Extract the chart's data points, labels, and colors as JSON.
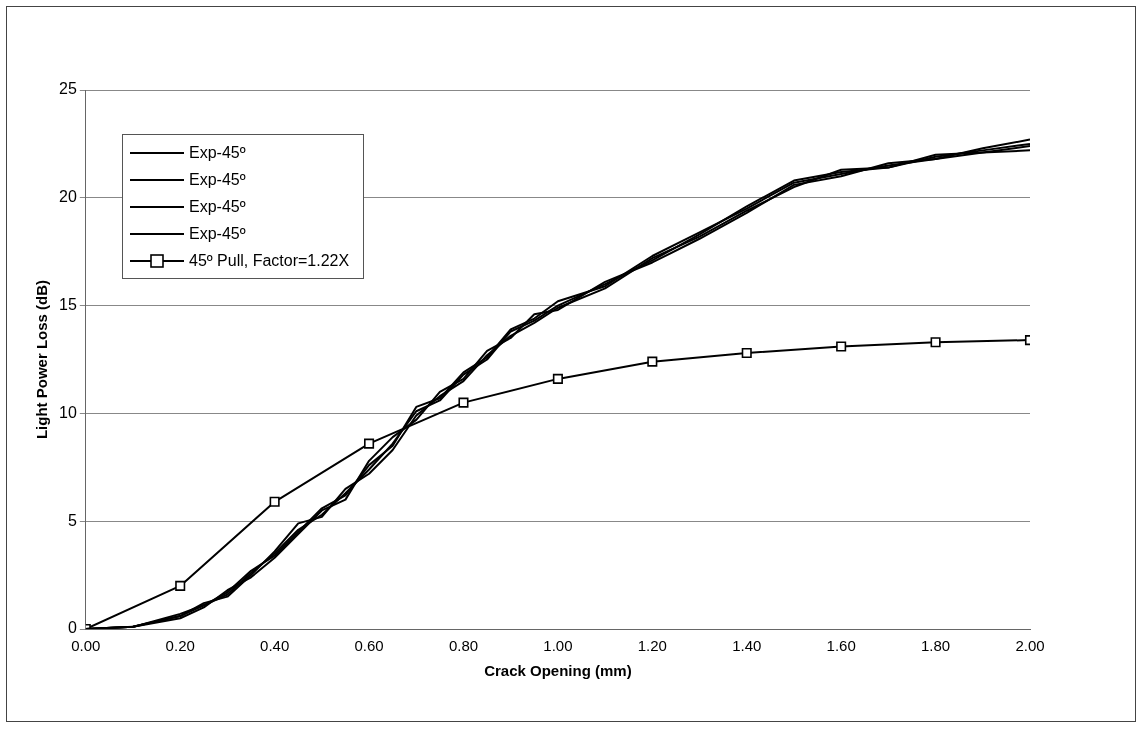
{
  "chart_data": {
    "type": "line",
    "xlabel": "Crack Opening (mm)",
    "ylabel": "Light Power Loss (dB)",
    "xlim": [
      0,
      2
    ],
    "xticks": [
      {
        "value": 0,
        "label": "0.00"
      },
      {
        "value": 0.2,
        "label": "0.20"
      },
      {
        "value": 0.4,
        "label": "0.40"
      },
      {
        "value": 0.6,
        "label": "0.60"
      },
      {
        "value": 0.8,
        "label": "0.80"
      },
      {
        "value": 1,
        "label": "1.00"
      },
      {
        "value": 1.2,
        "label": "1.20"
      },
      {
        "value": 1.4,
        "label": "1.40"
      },
      {
        "value": 1.6,
        "label": "1.60"
      },
      {
        "value": 1.8,
        "label": "1.80"
      },
      {
        "value": 2,
        "label": "2.00"
      }
    ],
    "ylim": [
      0,
      25
    ],
    "yticks": [
      0,
      5,
      10,
      15,
      20,
      25
    ],
    "grid": "y",
    "legend": "top left",
    "line_style": "solid",
    "x": [
      0,
      0.1,
      0.2,
      0.25,
      0.3,
      0.35,
      0.4,
      0.45,
      0.5,
      0.55,
      0.6,
      0.65,
      0.7,
      0.75,
      0.8,
      0.85,
      0.9,
      0.95,
      1,
      1.1,
      1.2,
      1.3,
      1.4,
      1.5,
      1.6,
      1.7,
      1.8,
      1.9,
      2
    ],
    "series": [
      {
        "name": "Exp-45º",
        "color": "#000000",
        "marker": "none",
        "values": [
          0,
          0.1,
          0.6,
          1.1,
          1.6,
          2.6,
          3.5,
          4.6,
          5.3,
          6.3,
          7.4,
          8.6,
          10.1,
          10.6,
          11.8,
          12.5,
          13.8,
          14.3,
          15.0,
          16.0,
          17.1,
          18.3,
          19.6,
          20.8,
          21.2,
          21.4,
          21.9,
          22.2,
          22.5
        ]
      },
      {
        "name": "Exp-45º",
        "color": "#000000",
        "marker": "none",
        "values": [
          0,
          0.1,
          0.5,
          1.0,
          1.8,
          2.4,
          3.3,
          4.4,
          5.5,
          6.0,
          7.8,
          8.9,
          9.7,
          11.0,
          11.6,
          12.9,
          13.5,
          14.6,
          14.8,
          16.1,
          17.0,
          18.1,
          19.3,
          20.6,
          21.0,
          21.6,
          21.8,
          22.3,
          22.7
        ]
      },
      {
        "name": "Exp-45º",
        "color": "#000000",
        "marker": "none",
        "values": [
          0,
          0.1,
          0.6,
          1.2,
          1.5,
          2.5,
          3.6,
          4.9,
          5.2,
          6.5,
          7.2,
          8.3,
          9.9,
          10.8,
          11.5,
          12.7,
          13.6,
          14.2,
          14.9,
          15.8,
          17.2,
          18.2,
          19.4,
          20.5,
          21.3,
          21.4,
          22.0,
          22.1,
          22.2
        ]
      },
      {
        "name": "Exp-45º",
        "color": "#000000",
        "marker": "none",
        "values": [
          0,
          0.1,
          0.7,
          1.1,
          1.7,
          2.7,
          3.4,
          4.5,
          5.6,
          6.2,
          7.6,
          8.5,
          10.3,
          10.7,
          11.9,
          12.6,
          13.9,
          14.4,
          15.2,
          15.9,
          17.3,
          18.4,
          19.5,
          20.7,
          21.1,
          21.5,
          21.8,
          22.1,
          22.4
        ]
      },
      {
        "name": "45º Pull, Factor=1.22X",
        "color": "#000000",
        "marker": "square",
        "x": [
          0,
          0.2,
          0.4,
          0.6,
          0.8,
          1,
          1.2,
          1.4,
          1.6,
          1.8,
          2
        ],
        "values": [
          0,
          2.0,
          5.9,
          8.6,
          10.5,
          11.6,
          12.4,
          12.8,
          13.1,
          13.3,
          13.4
        ]
      }
    ]
  }
}
